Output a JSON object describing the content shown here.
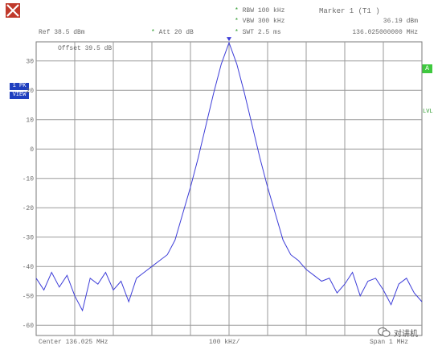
{
  "header": {
    "ref": "Ref  38.5 dBm",
    "att": "Att  20 dB",
    "rbw": "RBW 100 kHz",
    "vbw": "VBW 300 kHz",
    "swt": "SWT 2.5 ms",
    "marker_title": "Marker 1 (T1 )",
    "marker_level": "36.19 dBm",
    "marker_freq": "136.025000000 MHz"
  },
  "overlay": {
    "offset": "Offset  39.5 dB"
  },
  "side": {
    "trace_label": "1 PK",
    "view_label": "VIEW",
    "marker_box": "A",
    "lvl": "LVL"
  },
  "footer": {
    "center": "Center  136.025 MHz",
    "div": "100 kHz/",
    "span": "Span  1 MHz"
  },
  "watermark": {
    "text": "对讲机"
  },
  "colors": {
    "trace": "#3d3dd8",
    "grid": "#9a9a9a",
    "frame": "#7a7a7a",
    "accent_green": "#2a9a2a",
    "label_blue": "#1f3fbf"
  },
  "chart_data": {
    "type": "line",
    "xlim": [
      135.525,
      136.525
    ],
    "ylim": [
      -63.5,
      36.5
    ],
    "y_ticks": [
      30,
      20,
      10,
      0,
      -10,
      -20,
      -30,
      -40,
      -50,
      -60
    ],
    "grid": true,
    "center_mhz": 136.025,
    "span_mhz": 1,
    "marker": {
      "x": 136.025,
      "y": 36.19
    },
    "series": [
      {
        "x": [
          135.525,
          135.545,
          135.565,
          135.585,
          135.605,
          135.625,
          135.645,
          135.665,
          135.685,
          135.705,
          135.725,
          135.745,
          135.765,
          135.785,
          135.805,
          135.825,
          135.845,
          135.865,
          135.885,
          135.905,
          135.925,
          135.945,
          135.965,
          135.985,
          136.005,
          136.025,
          136.045,
          136.065,
          136.085,
          136.105,
          136.125,
          136.145,
          136.165,
          136.185,
          136.205,
          136.225,
          136.245,
          136.265,
          136.285,
          136.305,
          136.325,
          136.345,
          136.365,
          136.385,
          136.405,
          136.425,
          136.445,
          136.465,
          136.485,
          136.505,
          136.525
        ],
        "values": [
          -44,
          -48,
          -42,
          -47,
          -43,
          -50,
          -55,
          -44,
          -46,
          -42,
          -48,
          -45,
          -52,
          -44,
          -42,
          -40,
          -38,
          -36,
          -31,
          -22,
          -13,
          -3,
          8,
          19,
          29,
          36.19,
          29,
          19,
          8,
          -3,
          -13,
          -22,
          -31,
          -36,
          -38,
          -41,
          -43,
          -45,
          -44,
          -49,
          -46,
          -42,
          -50,
          -45,
          -44,
          -48,
          -53,
          -46,
          -44,
          -49,
          -52
        ]
      }
    ]
  }
}
